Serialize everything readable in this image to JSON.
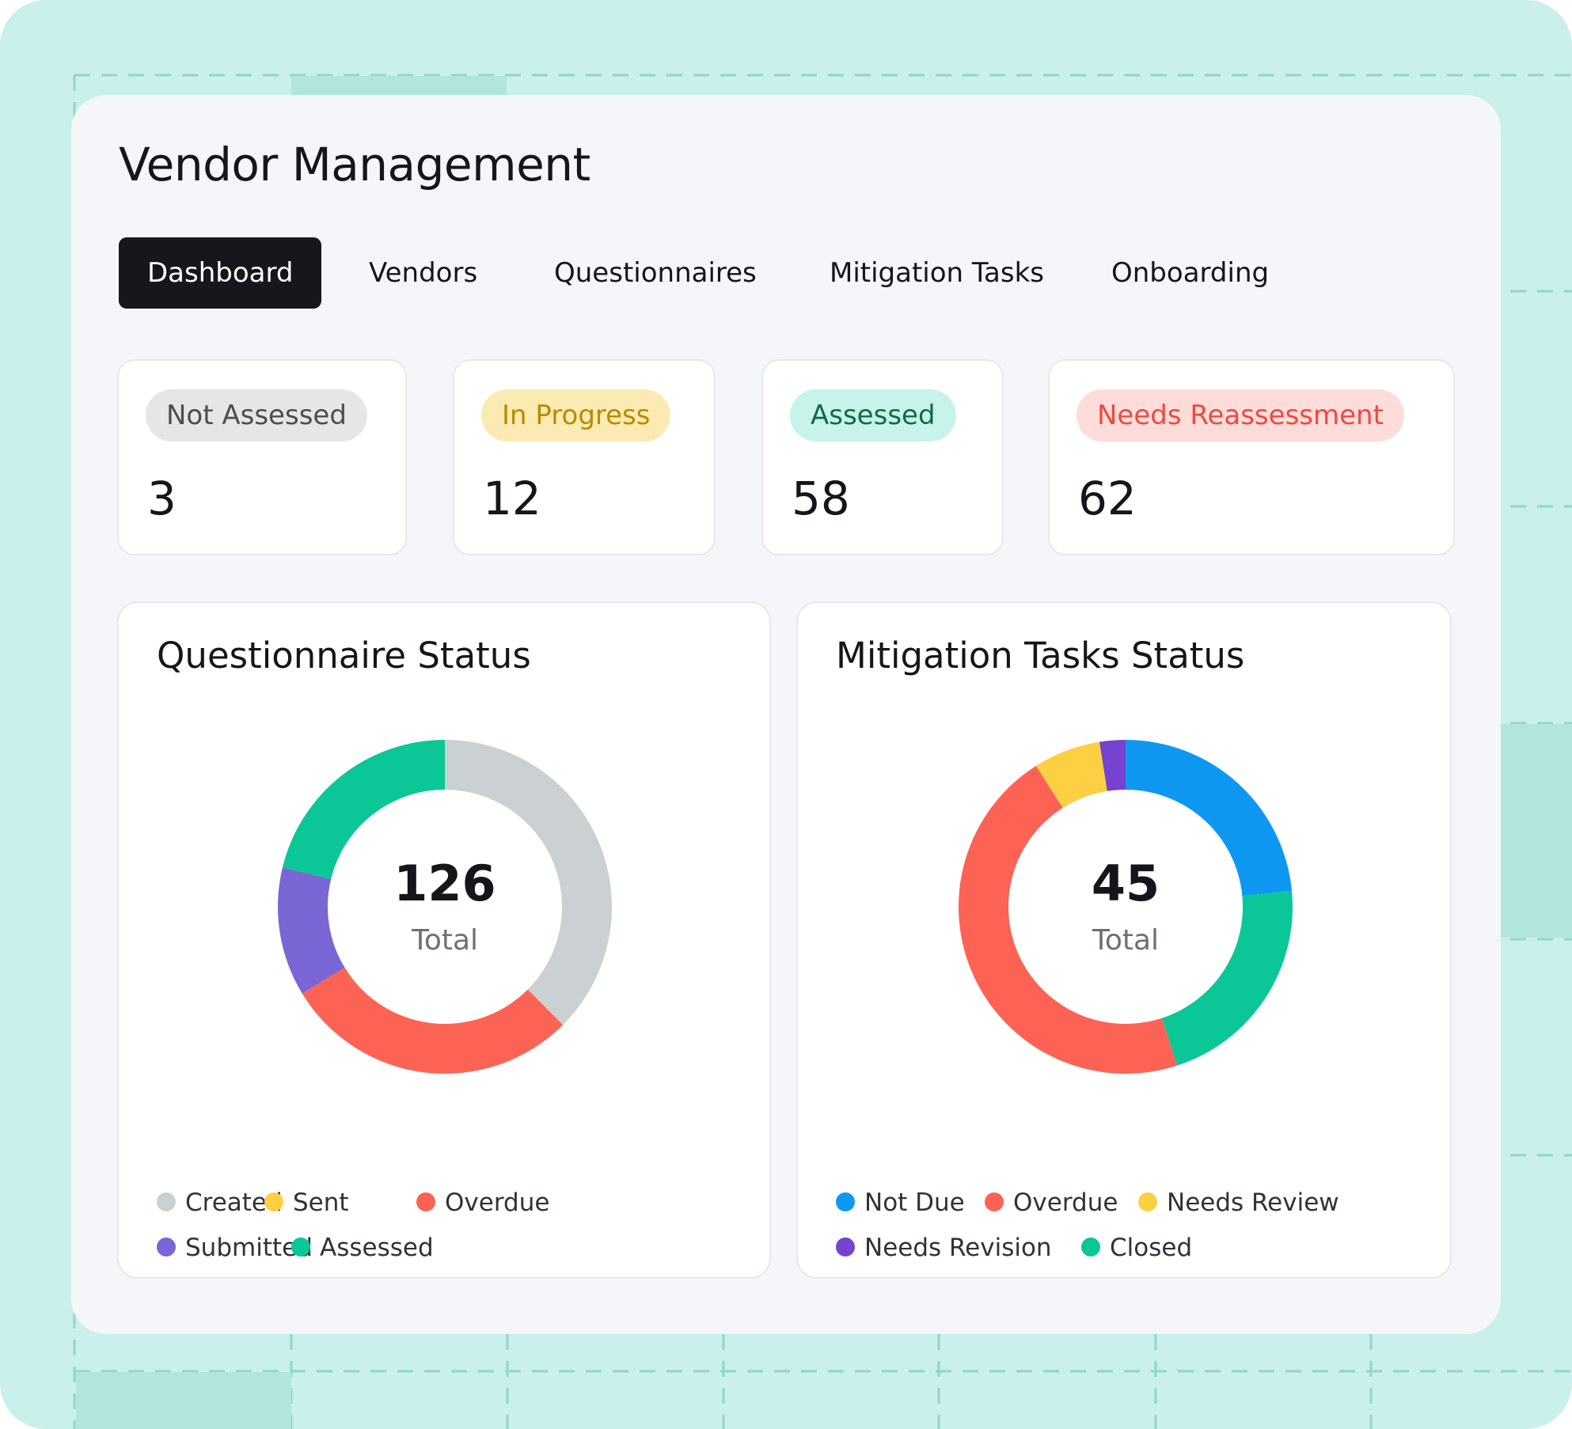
{
  "app": {
    "title": "Vendor Management"
  },
  "tabs": [
    {
      "label": "Dashboard",
      "active": true
    },
    {
      "label": "Vendors",
      "active": false
    },
    {
      "label": "Questionnaires",
      "active": false
    },
    {
      "label": "Mitigation Tasks",
      "active": false
    },
    {
      "label": "Onboarding",
      "active": false
    }
  ],
  "stats": [
    {
      "label": "Not Assessed",
      "value": "3",
      "bg": "#e6e6e6",
      "fg": "#4d4d4d"
    },
    {
      "label": "In Progress",
      "value": "12",
      "bg": "#fbebb2",
      "fg": "#b88a00"
    },
    {
      "label": "Assessed",
      "value": "58",
      "bg": "#c8f3ea",
      "fg": "#0f6b45"
    },
    {
      "label": "Needs Reassessment",
      "value": "62",
      "bg": "#fddcda",
      "fg": "#ef4a3e"
    }
  ],
  "chart_data": [
    {
      "type": "pie",
      "title": "Questionnaire Status",
      "center_value": "126",
      "center_label": "Total",
      "segments": [
        {
          "name": "Created",
          "value": 0.375,
          "color": "#cbd0d2"
        },
        {
          "name": "Sent",
          "value": 0,
          "color": "#fdcf43"
        },
        {
          "name": "Overdue",
          "value": 0.288,
          "color": "#fd6354"
        },
        {
          "name": "Submitted",
          "value": 0.125,
          "color": "#7a66d4"
        },
        {
          "name": "Assessed",
          "value": 0.212,
          "color": "#0bc797"
        }
      ],
      "legend_rows": [
        [
          "Created",
          "Sent",
          "Overdue"
        ],
        [
          "Submitted",
          "Assessed"
        ]
      ]
    },
    {
      "type": "pie",
      "title": "Mitigation Tasks Status",
      "center_value": "45",
      "center_label": "Total",
      "segments": [
        {
          "name": "Not Due",
          "value": 0.235,
          "color": "#0e98f2"
        },
        {
          "name": "Overdue",
          "value": 0.46,
          "color": "#fd6354"
        },
        {
          "name": "Needs Review",
          "value": 0.065,
          "color": "#fdcf43"
        },
        {
          "name": "Needs Revision",
          "value": 0.025,
          "color": "#7542d2"
        },
        {
          "name": "Closed",
          "value": 0.215,
          "color": "#0bc797"
        }
      ],
      "segment_order": [
        "Not Due",
        "Closed",
        "Overdue",
        "Needs Review",
        "Needs Revision"
      ],
      "legend_rows": [
        [
          "Not Due",
          "Overdue",
          "Needs Review"
        ],
        [
          "Needs Revision",
          "Closed"
        ]
      ]
    }
  ]
}
